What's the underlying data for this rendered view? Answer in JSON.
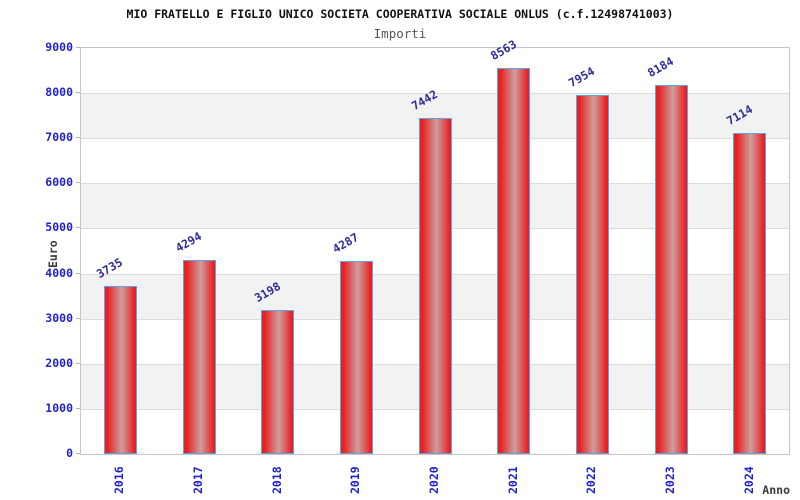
{
  "chart_data": {
    "type": "bar",
    "title": "MIO FRATELLO E FIGLIO UNICO SOCIETA COOPERATIVA SOCIALE ONLUS (c.f.12498741003)",
    "subtitle": "Importi",
    "xlabel": "Anno",
    "ylabel": "Euro",
    "categories": [
      "2016",
      "2017",
      "2018",
      "2019",
      "2020",
      "2021",
      "2022",
      "2023",
      "2024"
    ],
    "values": [
      3735,
      4294,
      3198,
      4287,
      7442,
      8563,
      7954,
      8184,
      7114
    ],
    "ylim": [
      0,
      9000
    ],
    "ytick_step": 1000,
    "grid": true,
    "legend": false,
    "band_fill_alternating": true,
    "colors": {
      "bar_fill": "#e82020",
      "bar_highlight": "#cf9e9e",
      "bar_border": "#5ea4e4",
      "tick_label": "#2222cc",
      "value_label": "#2c2c99",
      "band": "#f2f2f2",
      "gridline": "#dcdcdc",
      "plot_border": "#c6c6c6",
      "title": "#111111",
      "subtitle": "#555555",
      "axis_title": "#3c3c3c"
    }
  }
}
